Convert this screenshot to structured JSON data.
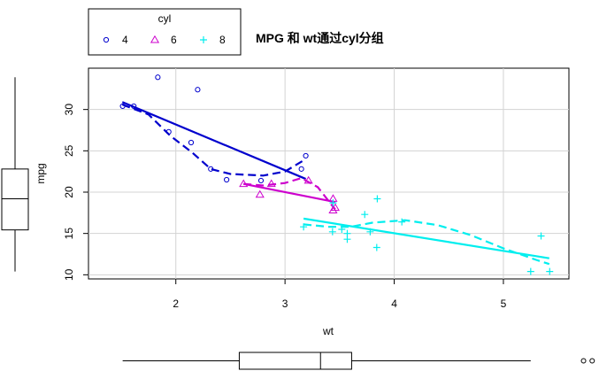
{
  "chart_data": {
    "type": "scatter",
    "title": "MPG 和 wt通过cyl分组",
    "xlabel": "wt",
    "ylabel": "mpg",
    "xlim": [
      1.2,
      5.6
    ],
    "ylim": [
      9.5,
      35
    ],
    "x_ticks": [
      2,
      3,
      4,
      5
    ],
    "y_ticks": [
      10,
      15,
      20,
      25,
      30
    ],
    "grid": true,
    "legend": {
      "title": "cyl",
      "position": "top-left",
      "orientation": "horizontal"
    },
    "series": [
      {
        "name": "4",
        "color": "#0000cd",
        "marker": "circle",
        "points": [
          [
            2.32,
            22.8
          ],
          [
            3.19,
            24.4
          ],
          [
            3.15,
            22.8
          ],
          [
            2.2,
            32.4
          ],
          [
            1.615,
            30.4
          ],
          [
            1.835,
            33.9
          ],
          [
            2.465,
            21.5
          ],
          [
            1.935,
            27.3
          ],
          [
            2.14,
            26.0
          ],
          [
            1.513,
            30.4
          ],
          [
            2.78,
            21.4
          ]
        ],
        "fit": [
          [
            1.51,
            30.9
          ],
          [
            3.19,
            21.6
          ]
        ],
        "smooth": [
          [
            1.51,
            30.6
          ],
          [
            1.75,
            29.4
          ],
          [
            1.95,
            26.8
          ],
          [
            2.15,
            24.8
          ],
          [
            2.32,
            22.8
          ],
          [
            2.5,
            22.2
          ],
          [
            2.8,
            22.0
          ],
          [
            3.0,
            22.5
          ],
          [
            3.19,
            24.0
          ]
        ]
      },
      {
        "name": "6",
        "color": "#cd00cd",
        "marker": "triangle",
        "points": [
          [
            2.62,
            21.0
          ],
          [
            2.875,
            21.0
          ],
          [
            3.215,
            21.4
          ],
          [
            3.46,
            18.1
          ],
          [
            3.44,
            19.2
          ],
          [
            3.44,
            17.8
          ],
          [
            2.77,
            19.7
          ]
        ],
        "fit": [
          [
            2.62,
            21.0
          ],
          [
            3.46,
            18.8
          ]
        ],
        "smooth": [
          [
            2.62,
            21.0
          ],
          [
            2.8,
            20.8
          ],
          [
            3.0,
            21.1
          ],
          [
            3.15,
            21.7
          ],
          [
            3.3,
            20.6
          ],
          [
            3.46,
            17.9
          ]
        ]
      },
      {
        "name": "8",
        "color": "#00eeee",
        "marker": "plus",
        "points": [
          [
            3.44,
            18.7
          ],
          [
            3.57,
            14.3
          ],
          [
            4.07,
            16.4
          ],
          [
            3.73,
            17.3
          ],
          [
            3.78,
            15.2
          ],
          [
            5.25,
            10.4
          ],
          [
            5.424,
            10.4
          ],
          [
            5.345,
            14.7
          ],
          [
            3.52,
            15.5
          ],
          [
            3.435,
            15.2
          ],
          [
            3.84,
            13.3
          ],
          [
            3.845,
            19.2
          ],
          [
            3.17,
            15.8
          ],
          [
            3.57,
            15.0
          ]
        ],
        "fit": [
          [
            3.17,
            16.8
          ],
          [
            5.42,
            12.0
          ]
        ],
        "smooth": [
          [
            3.17,
            16.1
          ],
          [
            3.4,
            15.8
          ],
          [
            3.6,
            15.8
          ],
          [
            3.8,
            16.3
          ],
          [
            4.1,
            16.6
          ],
          [
            4.4,
            16.0
          ],
          [
            4.7,
            14.8
          ],
          [
            5.0,
            13.2
          ],
          [
            5.3,
            11.8
          ],
          [
            5.42,
            11.3
          ]
        ]
      }
    ],
    "x_boxplot": {
      "min": 1.513,
      "q1": 2.581,
      "median": 3.325,
      "q3": 3.61,
      "whisker_hi": 5.25,
      "outliers": [
        5.345,
        5.424
      ]
    },
    "y_boxplot": {
      "min": 10.4,
      "q1": 15.43,
      "median": 19.2,
      "q3": 22.8,
      "max": 33.9
    }
  }
}
